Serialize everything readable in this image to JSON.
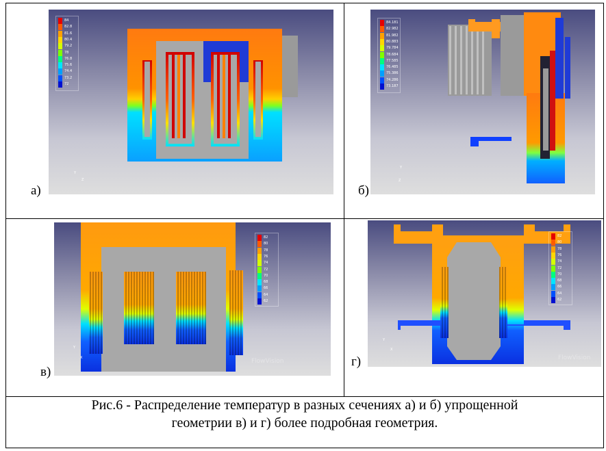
{
  "panels": {
    "a": {
      "label": "а)",
      "legend": [
        "84",
        "82.8",
        "81.6",
        "80.4",
        "79.2",
        "78",
        "76.8",
        "75.6",
        "74.4",
        "73.2",
        "72"
      ],
      "axis_y": "Y",
      "axis_x": "Z"
    },
    "b": {
      "label": "б)",
      "legend": [
        "84.181",
        "82.982",
        "81.982",
        "80.883",
        "79.784",
        "78.684",
        "77.585",
        "76.485",
        "75.386",
        "74.286",
        "73.187"
      ],
      "axis_y": "Y",
      "axis_x": "Z"
    },
    "v": {
      "label": "в)",
      "legend": [
        "82",
        "80",
        "78",
        "76",
        "74",
        "72",
        "70",
        "68",
        "66",
        "64",
        "62"
      ],
      "axis_y": "Y",
      "axis_x": "X",
      "watermark": "FlowVision"
    },
    "g": {
      "label": "г)",
      "legend": [
        "82",
        "80",
        "78",
        "76",
        "74",
        "72",
        "70",
        "68",
        "66",
        "64",
        "62"
      ],
      "axis_y": "Y",
      "axis_x": "X",
      "watermark": "FlowVision"
    }
  },
  "legend_colors": [
    "#e60000",
    "#ff5a00",
    "#ffa000",
    "#ffd700",
    "#d4ff00",
    "#80ff00",
    "#00ff7f",
    "#00e5ff",
    "#00a0ff",
    "#0050ff",
    "#0010d0"
  ],
  "caption": {
    "line1": "Рис.6 - Распределение температур в разных сечениях   а) и б) упрощенной",
    "line2": "геометрии в) и г) более подробная геометрия."
  }
}
